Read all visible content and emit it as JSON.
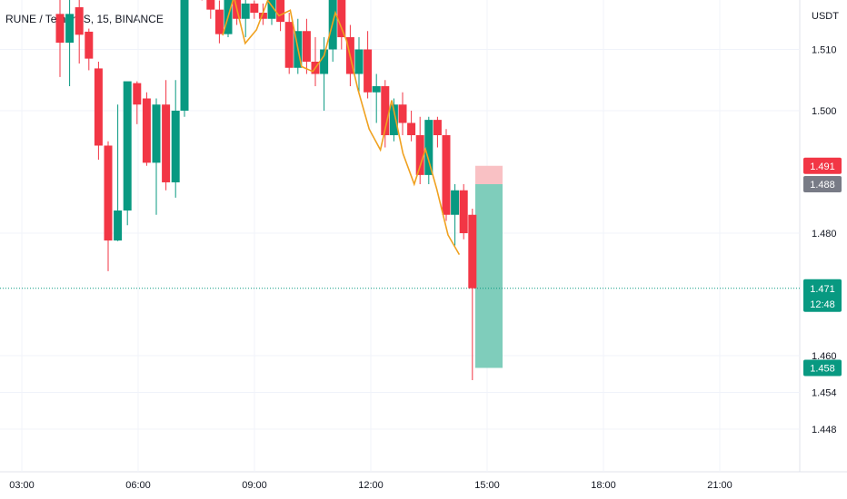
{
  "title": "RUNE / TetherUS, 15, BINANCE",
  "colors": {
    "up": "#089981",
    "down": "#f23645",
    "zigzag": "#f0a11f",
    "grid": "#f0f3fa",
    "text": "#131722",
    "current_line": "#089981",
    "profit_zone": "#7fcdbb",
    "stop_zone": "#f9c1c4",
    "entry_tag": "#787b86"
  },
  "chart_data": {
    "type": "candlestick",
    "x_unit": "time",
    "y_unit": "USDT",
    "y_ticks": [
      "1.510",
      "1.500",
      "1.480",
      "1.460",
      "1.454",
      "1.448"
    ],
    "x_ticks": [
      "03:00",
      "06:00",
      "09:00",
      "12:00",
      "15:00",
      "18:00",
      "21:00"
    ],
    "grid": true,
    "candles": [
      {
        "time": "03:45",
        "open": 1.5158,
        "high": 1.5212,
        "low": 1.5055,
        "close": 1.5111
      },
      {
        "time": "04:00",
        "open": 1.5111,
        "high": 1.5191,
        "low": 1.504,
        "close": 1.5158
      },
      {
        "time": "04:15",
        "open": 1.5169,
        "high": 1.5191,
        "low": 1.5077,
        "close": 1.5124
      },
      {
        "time": "04:30",
        "open": 1.5129,
        "high": 1.5134,
        "low": 1.5066,
        "close": 1.5085
      },
      {
        "time": "04:45",
        "open": 1.5069,
        "high": 1.508,
        "low": 1.492,
        "close": 1.4943
      },
      {
        "time": "05:00",
        "open": 1.4943,
        "high": 1.495,
        "low": 1.4738,
        "close": 1.4788
      },
      {
        "time": "05:15",
        "open": 1.4788,
        "high": 1.501,
        "low": 1.4787,
        "close": 1.4837
      },
      {
        "time": "05:30",
        "open": 1.4837,
        "high": 1.5045,
        "low": 1.4813,
        "close": 1.5048
      },
      {
        "time": "05:45",
        "open": 1.5045,
        "high": 1.5048,
        "low": 1.4978,
        "close": 1.501
      },
      {
        "time": "06:00",
        "open": 1.502,
        "high": 1.503,
        "low": 1.491,
        "close": 1.4915
      },
      {
        "time": "06:15",
        "open": 1.4915,
        "high": 1.502,
        "low": 1.483,
        "close": 1.501
      },
      {
        "time": "06:30",
        "open": 1.501,
        "high": 1.505,
        "low": 1.487,
        "close": 1.4883
      },
      {
        "time": "06:45",
        "open": 1.4883,
        "high": 1.505,
        "low": 1.4858,
        "close": 1.5
      }
    ],
    "zigzag": [
      1.5123,
      1.5186,
      1.511,
      1.5132,
      1.518,
      1.5155,
      1.5164,
      1.5072,
      1.5064,
      1.509,
      1.516,
      1.5114,
      1.5035,
      1.497,
      1.4936,
      1.5017,
      1.493,
      1.488,
      1.4937,
      1.4872,
      1.4797,
      1.4765
    ],
    "current_price": "1.471",
    "countdown": "12:48",
    "position": {
      "stop": "1.491",
      "entry": "1.488",
      "target": "1.458"
    }
  }
}
